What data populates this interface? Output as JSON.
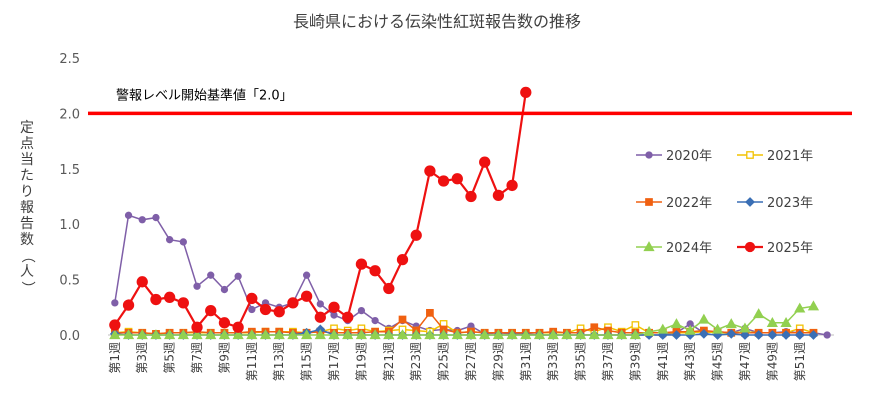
{
  "chart_data": {
    "type": "line",
    "title": "長崎県における伝染性紅斑報告数の推移",
    "ylabel": "定点当たり報告数（人）",
    "xlabel": "",
    "ylim": [
      0,
      2.5
    ],
    "yticks": [
      "0.0",
      "0.5",
      "1.0",
      "1.5",
      "2.0",
      "2.5"
    ],
    "grid": false,
    "legend_position": "right",
    "x": [
      "第1週",
      "第2週",
      "第3週",
      "第4週",
      "第5週",
      "第6週",
      "第7週",
      "第8週",
      "第9週",
      "第10週",
      "第11週",
      "第12週",
      "第13週",
      "第14週",
      "第15週",
      "第16週",
      "第17週",
      "第18週",
      "第19週",
      "第20週",
      "第21週",
      "第22週",
      "第23週",
      "第24週",
      "第25週",
      "第26週",
      "第27週",
      "第28週",
      "第29週",
      "第30週",
      "第31週",
      "第32週",
      "第33週",
      "第34週",
      "第35週",
      "第36週",
      "第37週",
      "第38週",
      "第39週",
      "第40週",
      "第41週",
      "第42週",
      "第43週",
      "第44週",
      "第45週",
      "第46週",
      "第47週",
      "第48週",
      "第49週",
      "第50週",
      "第51週",
      "第52週",
      "第53週"
    ],
    "xtick_labels": [
      "第1週",
      "第3週",
      "第5週",
      "第7週",
      "第9週",
      "第11週",
      "第13週",
      "第15週",
      "第17週",
      "第19週",
      "第21週",
      "第23週",
      "第25週",
      "第27週",
      "第29週",
      "第31週",
      "第33週",
      "第35週",
      "第37週",
      "第39週",
      "第41週",
      "第43週",
      "第45週",
      "第47週",
      "第49週",
      "第51週"
    ],
    "threshold": {
      "value": 2.0,
      "label": "警報レベル開始基準値「2.0」",
      "color": "#ff0000"
    },
    "series": [
      {
        "name": "2020年",
        "color": "#7f5fa8",
        "marker": "circle",
        "filled": true,
        "values": [
          0.29,
          1.08,
          1.04,
          1.06,
          0.86,
          0.84,
          0.44,
          0.54,
          0.41,
          0.53,
          0.23,
          0.29,
          0.25,
          0.29,
          0.54,
          0.28,
          0.18,
          0.13,
          0.22,
          0.13,
          0.06,
          0.13,
          0.08,
          0.04,
          0.05,
          0.04,
          0.08,
          0.01,
          0.02,
          0.01,
          0.01,
          0.0,
          0.0,
          0.0,
          0.0,
          0.0,
          0.0,
          0.0,
          0.0,
          0.0,
          0.0,
          0.02,
          0.1,
          0.02,
          0.03,
          0.02,
          0.06,
          0.02,
          0.02,
          0.03,
          0.02,
          0.02,
          0.0
        ]
      },
      {
        "name": "2021年",
        "color": "#f2c200",
        "marker": "square",
        "filled": false,
        "values": [
          0.02,
          0.03,
          0.02,
          0.01,
          0.02,
          0.02,
          0.02,
          0.02,
          0.02,
          0.02,
          0.02,
          0.03,
          0.03,
          0.03,
          0.02,
          0.03,
          0.06,
          0.04,
          0.06,
          0.03,
          0.04,
          0.05,
          0.04,
          0.03,
          0.1,
          0.02,
          0.03,
          0.02,
          0.02,
          0.02,
          0.02,
          0.02,
          0.02,
          0.02,
          0.06,
          0.03,
          0.07,
          0.03,
          0.09,
          0.02,
          0.02,
          0.02,
          0.02,
          0.03,
          0.02,
          0.02,
          0.03,
          0.02,
          0.02,
          0.02,
          0.06,
          0.02,
          null
        ]
      },
      {
        "name": "2022年",
        "color": "#f06010",
        "marker": "square",
        "filled": true,
        "values": [
          0.02,
          0.02,
          0.02,
          0.01,
          0.02,
          0.02,
          0.03,
          0.02,
          0.02,
          0.02,
          0.03,
          0.03,
          0.03,
          0.02,
          0.02,
          0.03,
          0.02,
          0.02,
          0.02,
          0.03,
          0.03,
          0.14,
          0.04,
          0.2,
          0.05,
          0.02,
          0.03,
          0.02,
          0.02,
          0.02,
          0.02,
          0.02,
          0.03,
          0.02,
          0.02,
          0.07,
          0.04,
          0.02,
          0.02,
          0.02,
          0.02,
          0.03,
          0.03,
          0.04,
          0.03,
          0.02,
          0.02,
          0.02,
          0.02,
          0.02,
          0.02,
          0.02,
          null
        ]
      },
      {
        "name": "2023年",
        "color": "#3a6fb5",
        "marker": "diamond",
        "filled": true,
        "values": [
          0.01,
          0.0,
          0.0,
          0.0,
          0.0,
          0.0,
          0.0,
          0.0,
          0.0,
          0.0,
          0.0,
          0.0,
          0.0,
          0.0,
          0.02,
          0.05,
          0.0,
          0.0,
          0.0,
          0.0,
          0.0,
          0.0,
          0.0,
          0.0,
          0.0,
          0.0,
          0.0,
          0.0,
          0.0,
          0.0,
          0.0,
          0.0,
          0.0,
          0.0,
          0.0,
          0.0,
          0.0,
          0.0,
          0.0,
          0.0,
          0.0,
          0.0,
          0.0,
          0.01,
          0.0,
          0.01,
          0.0,
          0.0,
          0.0,
          0.0,
          0.0,
          0.0,
          null
        ]
      },
      {
        "name": "2024年",
        "color": "#92d050",
        "marker": "triangle",
        "filled": true,
        "values": [
          0.0,
          0.0,
          0.0,
          0.0,
          0.0,
          0.0,
          0.0,
          0.0,
          0.0,
          0.0,
          0.0,
          0.0,
          0.0,
          0.0,
          0.0,
          0.0,
          0.0,
          0.0,
          0.0,
          0.0,
          0.0,
          0.0,
          0.0,
          0.0,
          0.0,
          0.0,
          0.0,
          0.0,
          0.0,
          0.0,
          0.0,
          0.0,
          0.0,
          0.0,
          0.0,
          0.0,
          0.0,
          0.0,
          0.0,
          0.03,
          0.05,
          0.1,
          0.04,
          0.14,
          0.05,
          0.1,
          0.06,
          0.19,
          0.11,
          0.11,
          0.24,
          0.26,
          null
        ]
      },
      {
        "name": "2025年",
        "color": "#ee1111",
        "marker": "circle",
        "filled": true,
        "values": [
          0.09,
          0.27,
          0.48,
          0.32,
          0.34,
          0.29,
          0.07,
          0.22,
          0.11,
          0.07,
          0.33,
          0.23,
          0.21,
          0.29,
          0.35,
          0.16,
          0.25,
          0.16,
          0.64,
          0.58,
          0.42,
          0.68,
          0.9,
          1.48,
          1.39,
          1.41,
          1.25,
          1.56,
          1.26,
          1.35,
          2.19,
          null,
          null,
          null,
          null,
          null,
          null,
          null,
          null,
          null,
          null,
          null,
          null,
          null,
          null,
          null,
          null,
          null,
          null,
          null,
          null,
          null,
          null
        ]
      }
    ]
  }
}
